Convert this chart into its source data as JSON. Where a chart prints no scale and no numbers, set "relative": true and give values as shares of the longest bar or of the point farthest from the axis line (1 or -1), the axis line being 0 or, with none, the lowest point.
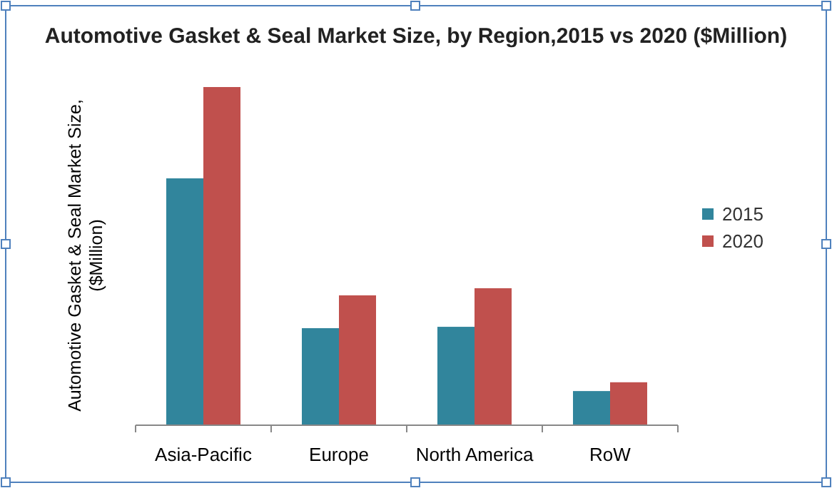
{
  "chart_data": {
    "type": "bar",
    "title": "Automotive Gasket & Seal Market Size, by Region,2015 vs 2020 ($Million)",
    "ylabel": "Automotive Gasket & Seal Market Size, ($Million)",
    "relative": true,
    "categories": [
      "Asia-Pacific",
      "Europe",
      "North America",
      "RoW"
    ],
    "series": [
      {
        "name": "2015",
        "color": "#31859c",
        "values": [
          0.73,
          0.287,
          0.291,
          0.101
        ]
      },
      {
        "name": "2020",
        "color": "#c0504d",
        "values": [
          1,
          0.384,
          0.405,
          0.127
        ]
      }
    ],
    "legend": "right"
  }
}
